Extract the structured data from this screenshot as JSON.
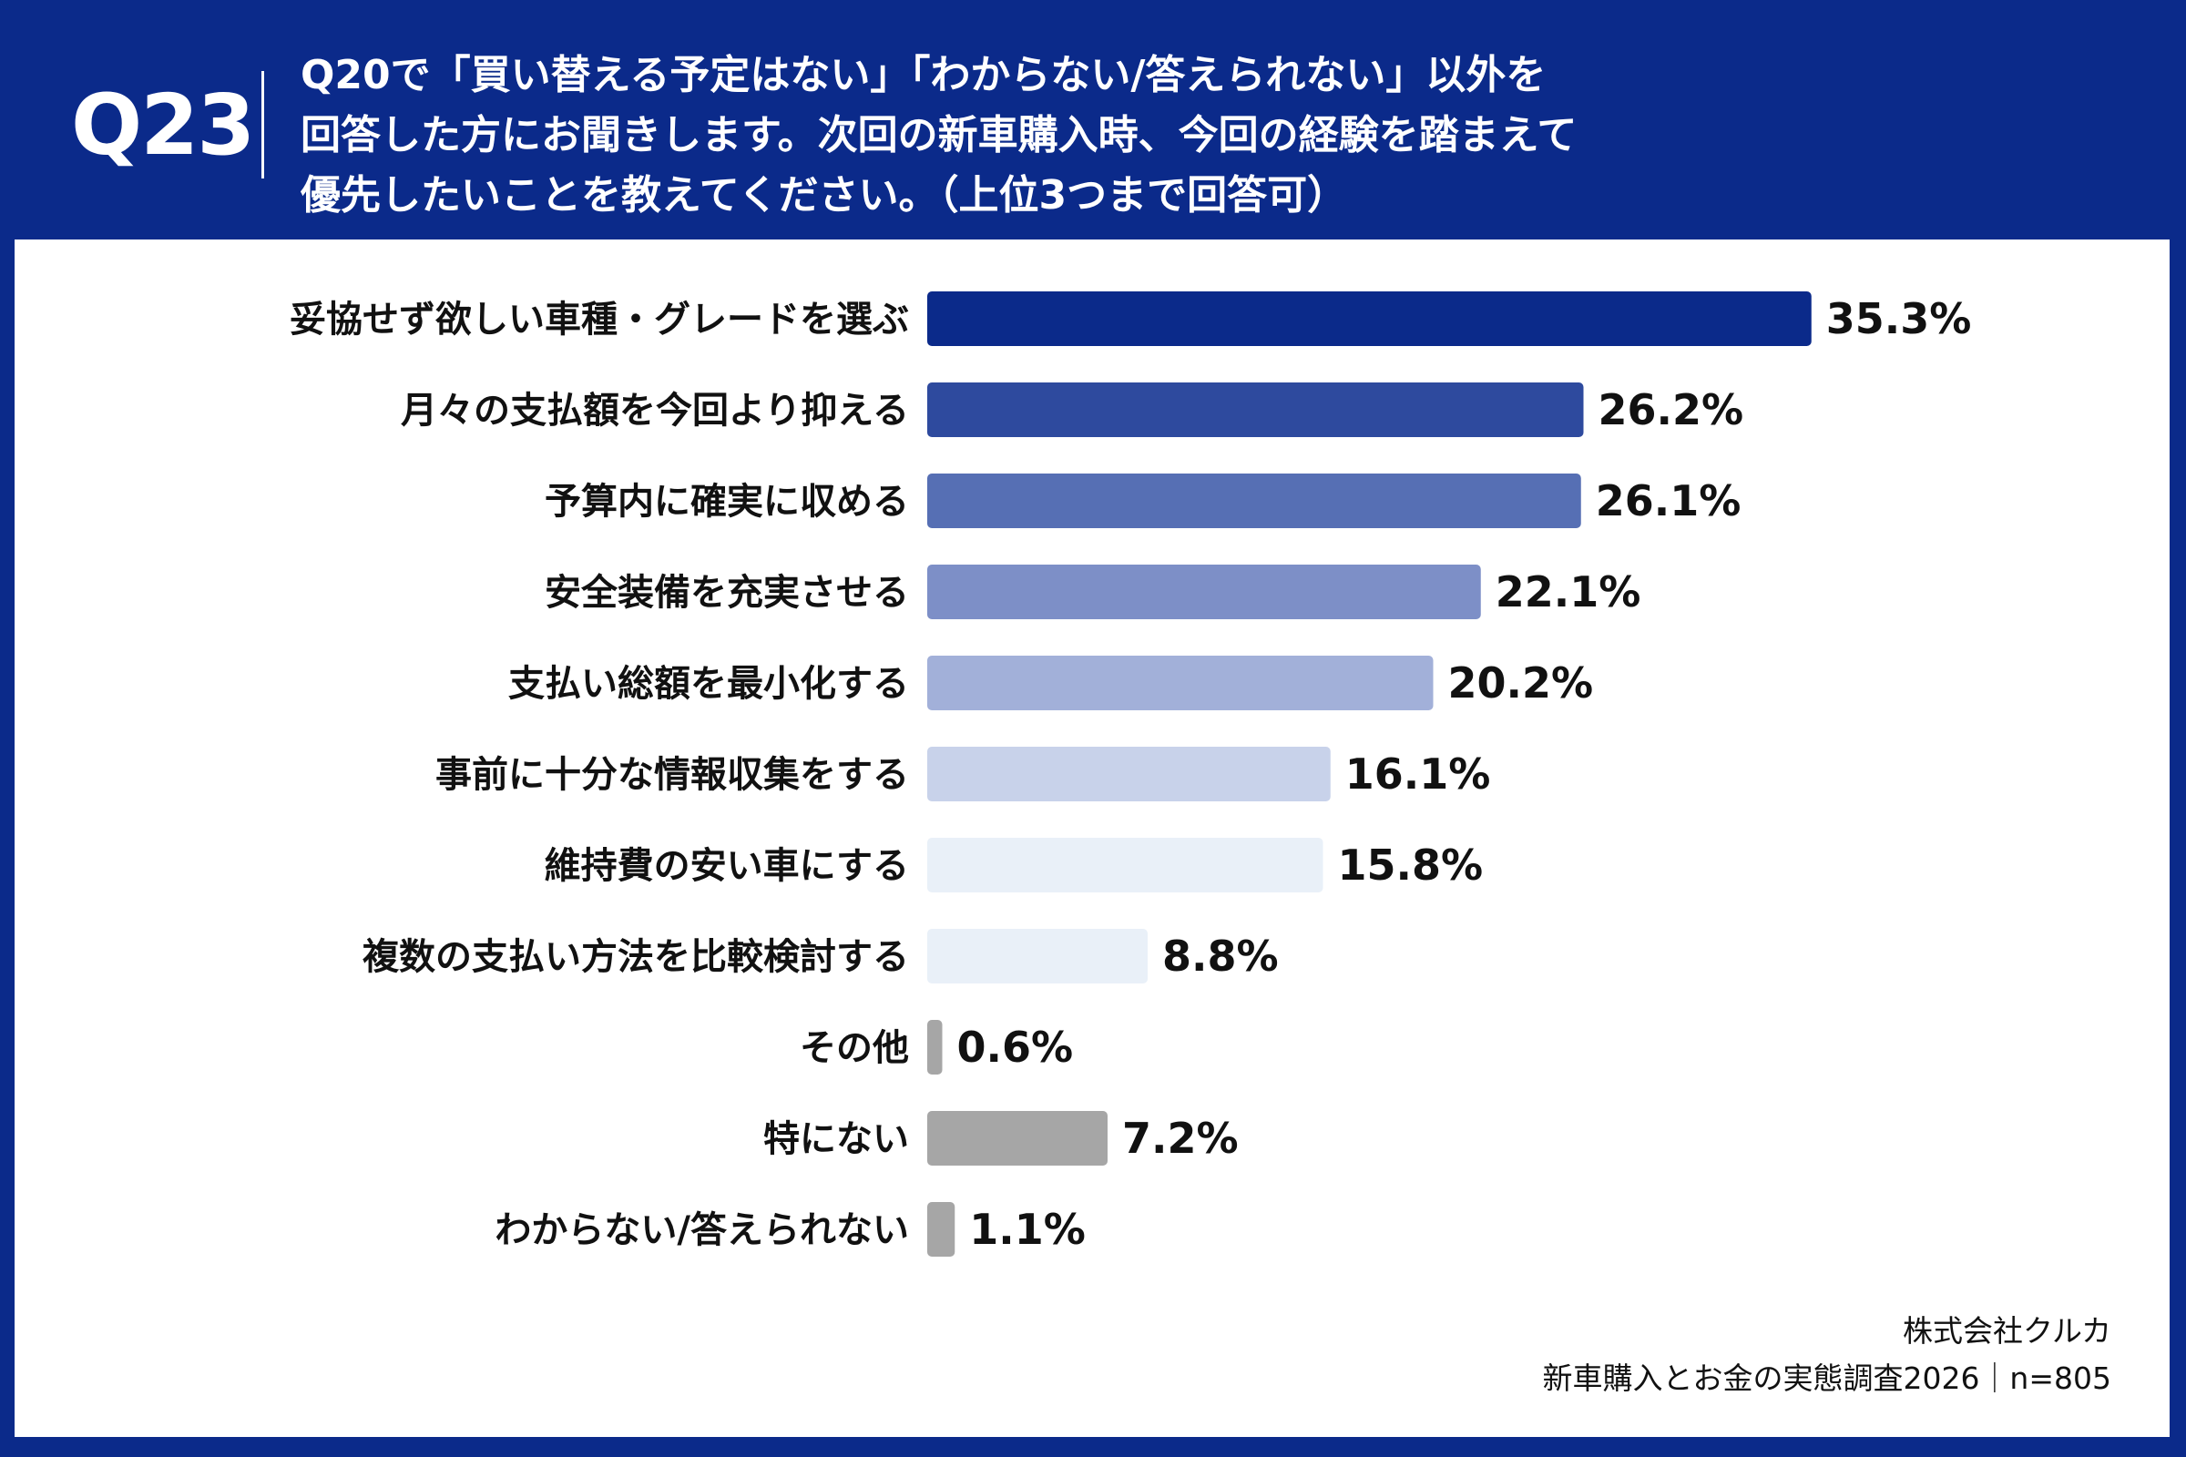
{
  "header": {
    "q_label": "Q23",
    "question_lines": [
      "Q20で「買い替える予定はない」「わからない/答えられない」以外を",
      "回答した方にお聞きします。次回の新車購入時、今回の経験を踏まえて",
      "優先したいことを教えてください。（上位3つまで回答可）"
    ]
  },
  "chart_data": {
    "type": "bar",
    "orientation": "horizontal",
    "categories": [
      "妥協せず欲しい車種・グレードを選ぶ",
      "月々の支払額を今回より抑える",
      "予算内に確実に収める",
      "安全装備を充実させる",
      "支払い総額を最小化する",
      "事前に十分な情報収集をする",
      "維持費の安い車にする",
      "複数の支払い方法を比較検討する",
      "その他",
      "特にない",
      "わからない/答えられない"
    ],
    "values": [
      35.3,
      26.2,
      26.1,
      22.1,
      20.2,
      16.1,
      15.8,
      8.8,
      0.6,
      7.2,
      1.1
    ],
    "value_labels": [
      "35.3%",
      "26.2%",
      "26.1%",
      "22.1%",
      "20.2%",
      "16.1%",
      "15.8%",
      "8.8%",
      "0.6%",
      "7.2%",
      "1.1%"
    ],
    "unit": "%",
    "colors": [
      "#0b2a8a",
      "#2e4a9e",
      "#566fb4",
      "#7d8fc7",
      "#a2b0d9",
      "#c8d2ea",
      "#e9f0f8",
      "#e9f0f8",
      "#a6a6a6",
      "#a6a6a6",
      "#a6a6a6"
    ]
  },
  "footer": {
    "company": "株式会社クルカ",
    "survey": "新車購入とお金の実態調査2026｜n=805"
  }
}
